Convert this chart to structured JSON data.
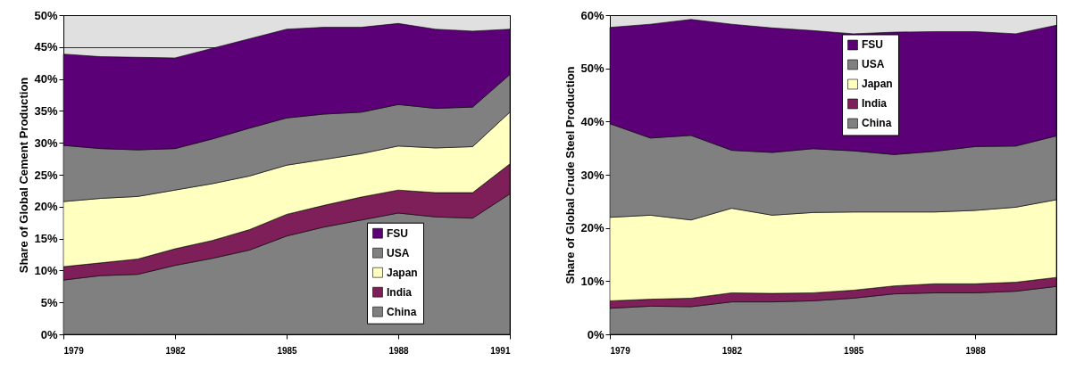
{
  "chart_data": [
    {
      "type": "area",
      "stacked": true,
      "ylabel": "Share of Global Cement Production",
      "x": [
        1979,
        1980,
        1981,
        1982,
        1983,
        1984,
        1985,
        1986,
        1987,
        1988,
        1989,
        1990,
        1991
      ],
      "xlim": [
        1979,
        1991
      ],
      "xticks": [
        1979,
        1982,
        1985,
        1988,
        1991
      ],
      "ylim": [
        0,
        50
      ],
      "yticks": [
        {
          "value": 0,
          "label": "0%"
        },
        {
          "value": 5,
          "label": "5%"
        },
        {
          "value": 10,
          "label": "10%"
        },
        {
          "value": 15,
          "label": "15%"
        },
        {
          "value": 20,
          "label": "20%"
        },
        {
          "value": 25,
          "label": "25%"
        },
        {
          "value": 30,
          "label": "30%"
        },
        {
          "value": 35,
          "label": "35%"
        },
        {
          "value": 40,
          "label": "40%"
        },
        {
          "value": 45,
          "label": "45%"
        },
        {
          "value": 50,
          "label": "50%"
        }
      ],
      "grid": "y",
      "legend": "bottom right",
      "series": [
        {
          "name": "China",
          "color": "#808080",
          "values": [
            8.5,
            9.2,
            9.4,
            10.8,
            11.9,
            13.2,
            15.4,
            16.8,
            17.9,
            19.0,
            18.4,
            18.2,
            22.0
          ]
        },
        {
          "name": "India",
          "color": "#7f1f5a",
          "values": [
            2.1,
            2.0,
            2.4,
            2.6,
            2.8,
            3.2,
            3.4,
            3.4,
            3.6,
            3.6,
            3.8,
            4.0,
            4.7
          ]
        },
        {
          "name": "Japan",
          "color": "#ffffc0",
          "values": [
            10.2,
            10.1,
            9.8,
            9.2,
            8.9,
            8.4,
            7.7,
            7.2,
            6.8,
            6.9,
            7.0,
            7.2,
            8.1
          ]
        },
        {
          "name": "USA",
          "color": "#808080",
          "values": [
            8.8,
            7.8,
            7.3,
            6.5,
            7.0,
            7.5,
            7.4,
            7.1,
            6.5,
            6.5,
            6.2,
            6.2,
            5.9
          ]
        },
        {
          "name": "FSU",
          "color": "#5c0078",
          "values": [
            14.3,
            14.4,
            14.5,
            14.2,
            14.2,
            14.0,
            13.9,
            13.6,
            13.3,
            12.7,
            12.4,
            11.9,
            7.1
          ]
        }
      ]
    },
    {
      "type": "area",
      "stacked": true,
      "ylabel": "Share of Global Crude Steel Production",
      "x": [
        1979,
        1980,
        1981,
        1982,
        1983,
        1984,
        1985,
        1986,
        1987,
        1988,
        1989,
        1990
      ],
      "xlim": [
        1979,
        1990
      ],
      "xticks": [
        1979,
        1982,
        1985,
        1988
      ],
      "ylim": [
        0,
        60
      ],
      "yticks": [
        {
          "value": 0,
          "label": "0%"
        },
        {
          "value": 10,
          "label": "10%"
        },
        {
          "value": 20,
          "label": "20%"
        },
        {
          "value": 30,
          "label": "30%"
        },
        {
          "value": 40,
          "label": "40%"
        },
        {
          "value": 50,
          "label": "50%"
        },
        {
          "value": 60,
          "label": "60%"
        }
      ],
      "legend": "top",
      "series": [
        {
          "name": "China",
          "color": "#808080",
          "values": [
            4.9,
            5.3,
            5.2,
            6.1,
            6.1,
            6.3,
            6.8,
            7.6,
            7.8,
            7.8,
            8.1,
            9.0
          ]
        },
        {
          "name": "India",
          "color": "#7f1f5a",
          "values": [
            1.4,
            1.3,
            1.6,
            1.7,
            1.6,
            1.5,
            1.5,
            1.5,
            1.7,
            1.7,
            1.7,
            1.7
          ]
        },
        {
          "name": "Japan",
          "color": "#ffffc0",
          "values": [
            15.7,
            15.8,
            14.7,
            15.9,
            14.7,
            15.1,
            14.7,
            13.9,
            13.5,
            13.8,
            14.1,
            14.6
          ]
        },
        {
          "name": "USA",
          "color": "#808080",
          "values": [
            17.6,
            14.5,
            15.9,
            10.9,
            11.8,
            12.0,
            11.5,
            10.8,
            11.4,
            12.0,
            11.5,
            12.0
          ]
        },
        {
          "name": "FSU",
          "color": "#5c0078",
          "values": [
            18.1,
            21.4,
            21.8,
            23.7,
            23.4,
            22.2,
            22.0,
            23.0,
            22.5,
            21.6,
            21.1,
            20.8
          ]
        }
      ]
    }
  ]
}
